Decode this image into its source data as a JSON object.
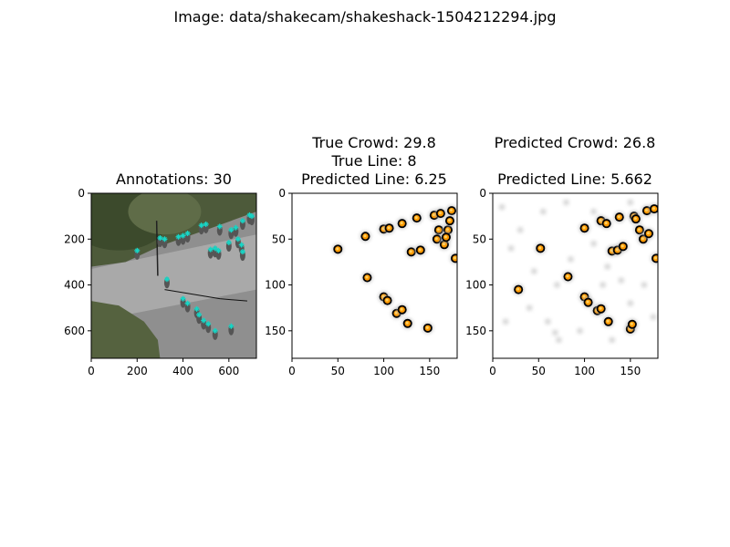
{
  "figure": {
    "suptitle": "Image: data/shakecam/shakeshack-1504212294.jpg"
  },
  "chart_data": [
    {
      "type": "image",
      "title": "Annotations: 30",
      "xlim": [
        0,
        720
      ],
      "ylim": [
        720,
        0
      ],
      "xticks": [
        0,
        200,
        400,
        600
      ],
      "yticks": [
        0,
        200,
        400,
        600
      ],
      "marker_color": "#17d7c7",
      "annotations": [
        [
          200,
          250
        ],
        [
          300,
          195
        ],
        [
          320,
          200
        ],
        [
          380,
          190
        ],
        [
          400,
          185
        ],
        [
          420,
          175
        ],
        [
          480,
          140
        ],
        [
          500,
          135
        ],
        [
          560,
          145
        ],
        [
          610,
          160
        ],
        [
          630,
          150
        ],
        [
          660,
          120
        ],
        [
          690,
          95
        ],
        [
          700,
          100
        ],
        [
          520,
          245
        ],
        [
          540,
          240
        ],
        [
          555,
          250
        ],
        [
          600,
          215
        ],
        [
          640,
          200
        ],
        [
          655,
          225
        ],
        [
          660,
          255
        ],
        [
          330,
          375
        ],
        [
          400,
          460
        ],
        [
          420,
          480
        ],
        [
          460,
          505
        ],
        [
          470,
          530
        ],
        [
          490,
          555
        ],
        [
          510,
          570
        ],
        [
          540,
          600
        ],
        [
          610,
          580
        ]
      ]
    },
    {
      "type": "heatmap",
      "title_lines": [
        "True Crowd: 29.8",
        "True Line: 8",
        "Predicted Line: 6.25"
      ],
      "xlim": [
        0,
        180
      ],
      "ylim": [
        180,
        0
      ],
      "xticks": [
        0,
        50,
        100,
        150
      ],
      "yticks": [
        0,
        50,
        100,
        150
      ],
      "colormap": [
        "#ffffff",
        "#000000",
        "#ff9900",
        "#ffd060"
      ],
      "blobs": [
        [
          50,
          61
        ],
        [
          80,
          47
        ],
        [
          82,
          92
        ],
        [
          100,
          113
        ],
        [
          104,
          117
        ],
        [
          100,
          39
        ],
        [
          106,
          38
        ],
        [
          120,
          33
        ],
        [
          136,
          27
        ],
        [
          114,
          131
        ],
        [
          120,
          127
        ],
        [
          126,
          142
        ],
        [
          148,
          147
        ],
        [
          130,
          64
        ],
        [
          140,
          62
        ],
        [
          155,
          24
        ],
        [
          162,
          22
        ],
        [
          174,
          19
        ],
        [
          160,
          40
        ],
        [
          158,
          50
        ],
        [
          166,
          56
        ],
        [
          170,
          40
        ],
        [
          168,
          48
        ],
        [
          178,
          71
        ],
        [
          172,
          30
        ]
      ]
    },
    {
      "type": "heatmap",
      "title_lines": [
        "Predicted Crowd: 26.8",
        "",
        "Predicted Line: 5.662"
      ],
      "xlim": [
        0,
        180
      ],
      "ylim": [
        180,
        0
      ],
      "xticks": [
        0,
        50,
        100,
        150
      ],
      "yticks": [
        0,
        50,
        100,
        150
      ],
      "colormap": [
        "#ffffff",
        "#000000",
        "#ff9900",
        "#ffd060"
      ],
      "blobs": [
        [
          28,
          105
        ],
        [
          52,
          60
        ],
        [
          82,
          91
        ],
        [
          100,
          113
        ],
        [
          104,
          119
        ],
        [
          114,
          128
        ],
        [
          118,
          126
        ],
        [
          126,
          140
        ],
        [
          100,
          38
        ],
        [
          118,
          30
        ],
        [
          124,
          33
        ],
        [
          138,
          26
        ],
        [
          154,
          25
        ],
        [
          156,
          28
        ],
        [
          168,
          19
        ],
        [
          176,
          17
        ],
        [
          130,
          63
        ],
        [
          136,
          62
        ],
        [
          142,
          58
        ],
        [
          160,
          40
        ],
        [
          164,
          50
        ],
        [
          170,
          44
        ],
        [
          178,
          71
        ],
        [
          150,
          148
        ],
        [
          152,
          143
        ]
      ],
      "faint": [
        [
          10,
          15
        ],
        [
          30,
          40
        ],
        [
          45,
          85
        ],
        [
          60,
          140
        ],
        [
          68,
          152
        ],
        [
          72,
          160
        ],
        [
          85,
          72
        ],
        [
          110,
          55
        ],
        [
          125,
          80
        ],
        [
          140,
          95
        ],
        [
          150,
          120
        ],
        [
          95,
          150
        ],
        [
          40,
          125
        ],
        [
          14,
          140
        ],
        [
          120,
          100
        ],
        [
          165,
          100
        ],
        [
          175,
          135
        ],
        [
          55,
          20
        ],
        [
          80,
          10
        ],
        [
          110,
          20
        ],
        [
          150,
          10
        ],
        [
          20,
          60
        ],
        [
          70,
          100
        ],
        [
          130,
          160
        ]
      ]
    }
  ]
}
